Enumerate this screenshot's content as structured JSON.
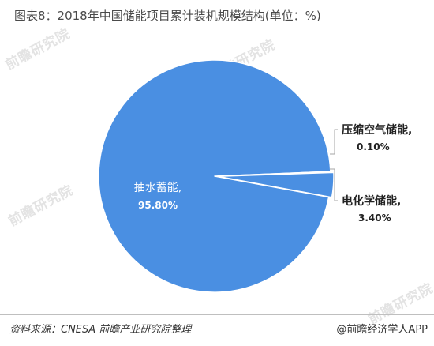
{
  "title": "图表8：2018年中国储能项目累计装机规模结构(单位：%)",
  "watermark": "前瞻研究院",
  "source": "资料来源：CNESA 前瞻产业研究院整理",
  "brand": "@前瞻经济学人APP",
  "colors": {
    "main_slice": "#4a8fe2",
    "secondary_slice": "#4a8fe2",
    "slice_stroke": "#ffffff",
    "leader_line": "#a6a6a6",
    "outside_label": "#222222",
    "inside_label": "#ffffff"
  },
  "chart_data": {
    "type": "pie",
    "title": "图表8：2018年中国储能项目累计装机规模结构(单位：%)",
    "unit": "%",
    "slices": [
      {
        "label": "抽水蓄能,",
        "value": 95.8,
        "value_label": "95.80%",
        "label_position": "inside"
      },
      {
        "label": "电化学储能,",
        "value": 3.4,
        "value_label": "3.40%",
        "label_position": "outside"
      },
      {
        "label": "压缩空气储能,",
        "value": 0.1,
        "value_label": "0.10%",
        "label_position": "outside"
      }
    ]
  }
}
